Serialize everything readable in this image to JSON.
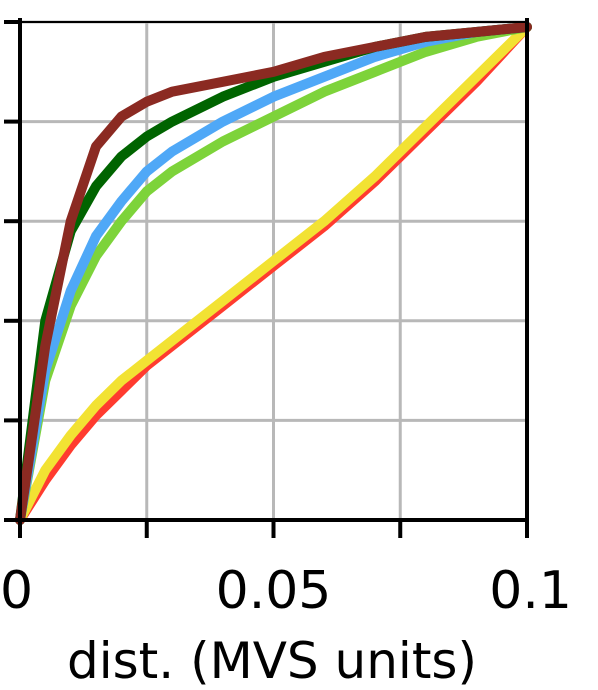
{
  "chart_data": {
    "type": "line",
    "title": "",
    "xlabel": "dist. (MVS units)",
    "ylabel": "",
    "xlim": [
      0,
      0.1
    ],
    "ylim": [
      0,
      1
    ],
    "grid": true,
    "x_ticks": [
      0,
      0.025,
      0.05,
      0.075,
      0.1
    ],
    "x_tick_labels": [
      "0",
      "",
      "0.05",
      "",
      "0.1"
    ],
    "y_ticks": [
      0,
      0.2,
      0.4,
      0.6,
      0.8,
      1.0
    ],
    "y_tick_labels": [
      "",
      "",
      "",
      "",
      "",
      ""
    ],
    "series": [
      {
        "color": "#ff3b2f",
        "x": [
          0,
          0.005,
          0.01,
          0.015,
          0.02,
          0.025,
          0.03,
          0.04,
          0.05,
          0.06,
          0.07,
          0.08,
          0.09,
          0.1
        ],
        "y": [
          0,
          0.08,
          0.15,
          0.21,
          0.26,
          0.31,
          0.35,
          0.43,
          0.51,
          0.59,
          0.68,
          0.78,
          0.88,
          0.99
        ]
      },
      {
        "color": "#f2e233",
        "x": [
          0,
          0.005,
          0.01,
          0.015,
          0.02,
          0.025,
          0.03,
          0.04,
          0.05,
          0.06,
          0.07,
          0.08,
          0.09,
          0.1
        ],
        "y": [
          0,
          0.1,
          0.17,
          0.23,
          0.28,
          0.32,
          0.36,
          0.44,
          0.52,
          0.6,
          0.69,
          0.79,
          0.89,
          0.99
        ]
      },
      {
        "color": "#7dd33a",
        "x": [
          0,
          0.005,
          0.01,
          0.015,
          0.02,
          0.025,
          0.03,
          0.04,
          0.05,
          0.06,
          0.07,
          0.08,
          0.09,
          0.1
        ],
        "y": [
          0,
          0.28,
          0.43,
          0.53,
          0.6,
          0.66,
          0.7,
          0.76,
          0.81,
          0.86,
          0.9,
          0.94,
          0.97,
          0.99
        ]
      },
      {
        "color": "#4fa8f7",
        "x": [
          0,
          0.005,
          0.01,
          0.015,
          0.02,
          0.025,
          0.03,
          0.04,
          0.05,
          0.06,
          0.07,
          0.08,
          0.09,
          0.1
        ],
        "y": [
          0,
          0.3,
          0.46,
          0.57,
          0.64,
          0.7,
          0.74,
          0.8,
          0.85,
          0.89,
          0.93,
          0.96,
          0.98,
          0.99
        ]
      },
      {
        "color": "#006400",
        "x": [
          0,
          0.005,
          0.01,
          0.015,
          0.02,
          0.025,
          0.03,
          0.04,
          0.05,
          0.06,
          0.07,
          0.08,
          0.09,
          0.1
        ],
        "y": [
          0,
          0.4,
          0.58,
          0.67,
          0.73,
          0.77,
          0.8,
          0.85,
          0.89,
          0.92,
          0.95,
          0.97,
          0.98,
          0.99
        ]
      },
      {
        "color": "#8b2a22",
        "x": [
          0,
          0.005,
          0.01,
          0.015,
          0.02,
          0.025,
          0.03,
          0.04,
          0.05,
          0.06,
          0.07,
          0.08,
          0.09,
          0.1
        ],
        "y": [
          0,
          0.35,
          0.6,
          0.75,
          0.81,
          0.84,
          0.86,
          0.88,
          0.9,
          0.93,
          0.95,
          0.97,
          0.98,
          0.99
        ]
      }
    ]
  }
}
